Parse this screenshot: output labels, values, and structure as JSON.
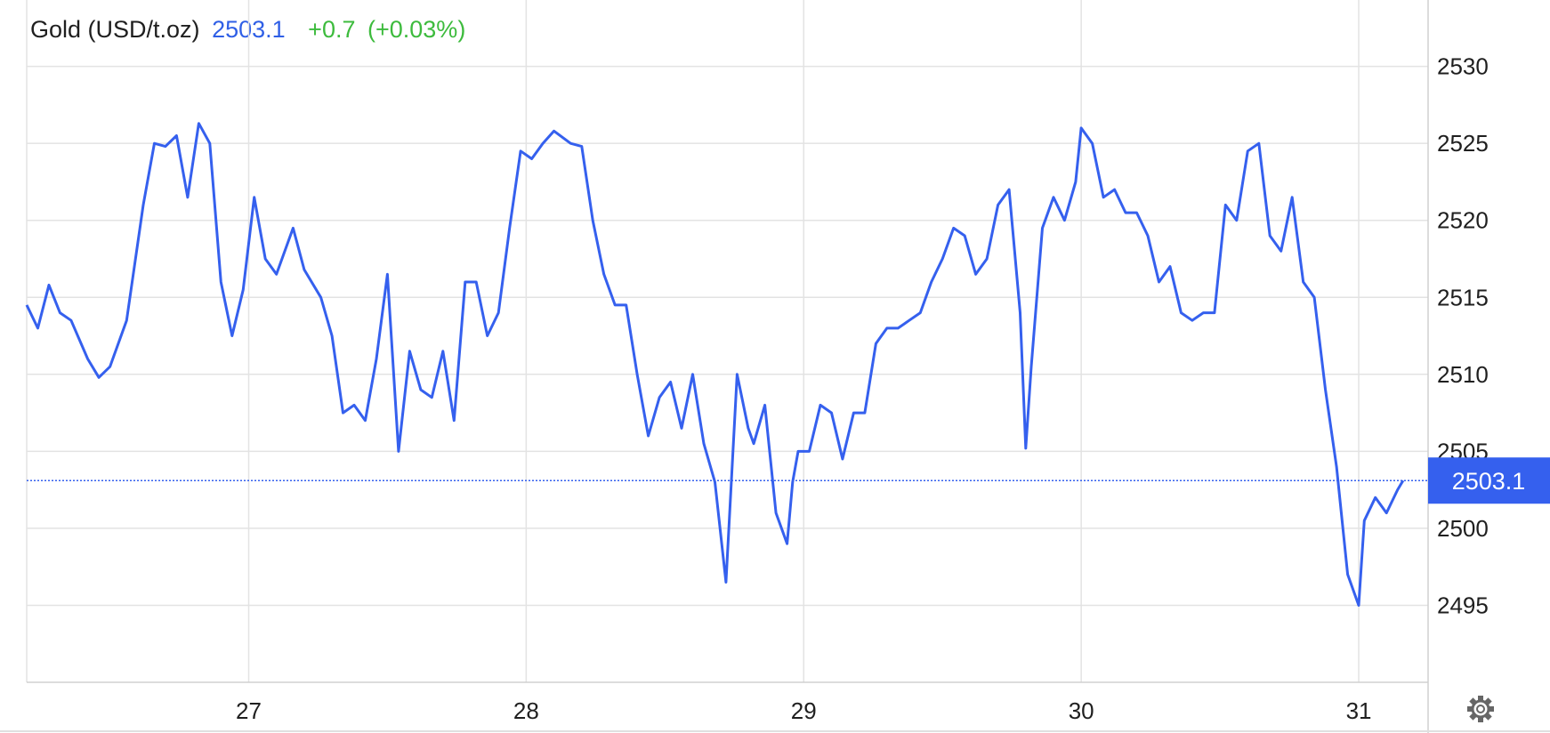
{
  "header": {
    "instrument": "Gold (USD/t.oz)",
    "price": "2503.1",
    "change": "+0.7",
    "change_pct": "(+0.03%)"
  },
  "colors": {
    "line": "#3560ee",
    "price_tag": "#3560ee",
    "positive": "#3dbb3d",
    "grid": "#e3e3e3",
    "text": "#1f1f1f"
  },
  "settings_icon": "gear-icon",
  "chart_data": {
    "type": "line",
    "title": "",
    "xlabel": "",
    "ylabel": "",
    "xlim": [
      26.2,
      31.25
    ],
    "ylim": [
      2490,
      2532
    ],
    "x_ticks": [
      27,
      28,
      29,
      30,
      31
    ],
    "x_tick_labels": [
      "27",
      "28",
      "29",
      "30",
      "31"
    ],
    "y_ticks": [
      2495,
      2500,
      2505,
      2510,
      2515,
      2520,
      2525,
      2530
    ],
    "y_tick_labels": [
      "2495",
      "2500",
      "2505",
      "2510",
      "2515",
      "2520",
      "2525",
      "2530"
    ],
    "current_value": 2503.1,
    "current_label": "2503.1",
    "grid": true,
    "legend": "none",
    "series": [
      {
        "x": [
          26.2,
          26.24,
          26.28,
          26.32,
          26.36,
          26.42,
          26.46,
          26.5,
          26.56,
          26.62,
          26.66,
          26.7,
          26.74,
          26.78,
          26.82,
          26.86,
          26.9,
          26.94,
          26.98,
          27.02,
          27.06,
          27.1,
          27.16,
          27.2,
          27.26,
          27.3,
          27.34,
          27.38,
          27.42,
          27.46,
          27.5,
          27.54,
          27.58,
          27.62,
          27.66,
          27.7,
          27.74,
          27.78,
          27.82,
          27.86,
          27.9,
          27.94,
          27.98,
          28.02,
          28.06,
          28.1,
          28.16,
          28.2,
          28.24,
          28.28,
          28.32,
          28.36,
          28.4,
          28.44,
          28.48,
          28.52,
          28.56,
          28.6,
          28.64,
          28.68,
          28.72,
          28.76,
          28.8,
          28.82,
          28.86,
          28.9,
          28.94,
          28.96,
          28.98,
          29.02,
          29.06,
          29.1,
          29.14,
          29.18,
          29.22,
          29.26,
          29.3,
          29.34,
          29.38,
          29.42,
          29.46,
          29.5,
          29.54,
          29.58,
          29.62,
          29.66,
          29.7,
          29.74,
          29.78,
          29.8,
          29.82,
          29.86,
          29.9,
          29.94,
          29.98,
          30.0,
          30.04,
          30.08,
          30.12,
          30.16,
          30.2,
          30.24,
          30.28,
          30.32,
          30.36,
          30.4,
          30.44,
          30.48,
          30.52,
          30.56,
          30.6,
          30.64,
          30.68,
          30.72,
          30.76,
          30.8,
          30.84,
          30.88,
          30.92,
          30.96,
          31.0,
          31.02,
          31.06,
          31.1,
          31.14,
          31.16
        ],
        "y": [
          2514.5,
          2513.0,
          2515.8,
          2514.0,
          2513.5,
          2511.0,
          2509.8,
          2510.5,
          2513.5,
          2521.0,
          2525.0,
          2524.8,
          2525.5,
          2521.5,
          2526.3,
          2525.0,
          2516.0,
          2512.5,
          2515.5,
          2521.5,
          2517.5,
          2516.5,
          2519.5,
          2516.8,
          2515.0,
          2512.5,
          2507.5,
          2508.0,
          2507.0,
          2511.0,
          2516.5,
          2505.0,
          2511.5,
          2509.0,
          2508.5,
          2511.5,
          2507.0,
          2516.0,
          2516.0,
          2512.5,
          2514.0,
          2519.5,
          2524.5,
          2524.0,
          2525.0,
          2525.8,
          2525.0,
          2524.8,
          2520.0,
          2516.5,
          2514.5,
          2514.5,
          2510.0,
          2506.0,
          2508.5,
          2509.5,
          2506.5,
          2510.0,
          2505.5,
          2503.0,
          2496.5,
          2510.0,
          2506.5,
          2505.5,
          2508.0,
          2501.0,
          2499.0,
          2503.0,
          2505.0,
          2505.0,
          2508.0,
          2507.5,
          2504.5,
          2507.5,
          2507.5,
          2512.0,
          2513.0,
          2513.0,
          2513.5,
          2514.0,
          2516.0,
          2517.5,
          2519.5,
          2519.0,
          2516.5,
          2517.5,
          2521.0,
          2522.0,
          2514.0,
          2505.2,
          2510.5,
          2519.5,
          2521.5,
          2520.0,
          2522.5,
          2526.0,
          2525.0,
          2521.5,
          2522.0,
          2520.5,
          2520.5,
          2519.0,
          2516.0,
          2517.0,
          2514.0,
          2513.5,
          2514.0,
          2514.0,
          2521.0,
          2520.0,
          2524.5,
          2525.0,
          2519.0,
          2518.0,
          2521.5,
          2516.0,
          2515.0,
          2509.0,
          2504.0,
          2497.0,
          2495.0,
          2500.5,
          2502.0,
          2501.0,
          2502.5,
          2503.1
        ]
      }
    ]
  }
}
